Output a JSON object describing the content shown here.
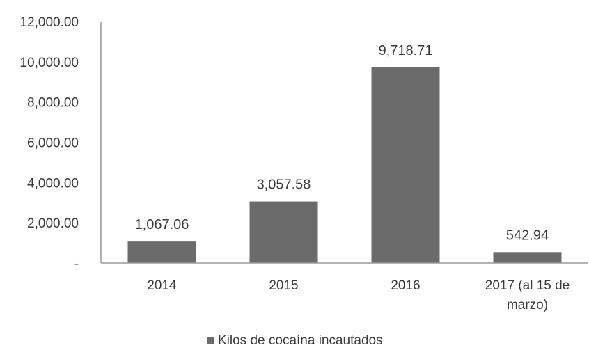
{
  "chart_data": {
    "type": "bar",
    "categories": [
      "2014",
      "2015",
      "2016",
      "2017 (al 15 de marzo)"
    ],
    "category_lines": [
      [
        "2014"
      ],
      [
        "2015"
      ],
      [
        "2016"
      ],
      [
        "2017 (al 15 de",
        "marzo)"
      ]
    ],
    "values": [
      1067.06,
      3057.58,
      9718.71,
      542.94
    ],
    "data_labels": [
      "1,067.06",
      "3,057.58",
      "9,718.71",
      "542.94"
    ],
    "y_ticks": [
      0,
      2000,
      4000,
      6000,
      8000,
      10000,
      12000
    ],
    "y_tick_labels": [
      "-",
      "2,000.00",
      "4,000.00",
      "6,000.00",
      "8,000.00",
      "10,000.00",
      "12,000.00"
    ],
    "ylim": [
      0,
      12000
    ],
    "grid": false,
    "legend": {
      "position": "bottom",
      "entries": [
        {
          "name": "Kilos de cocaína incautados",
          "color": "#6b6b6b"
        }
      ]
    },
    "bar_color": "#6b6b6b",
    "axis_color": "#9a9a9a"
  }
}
